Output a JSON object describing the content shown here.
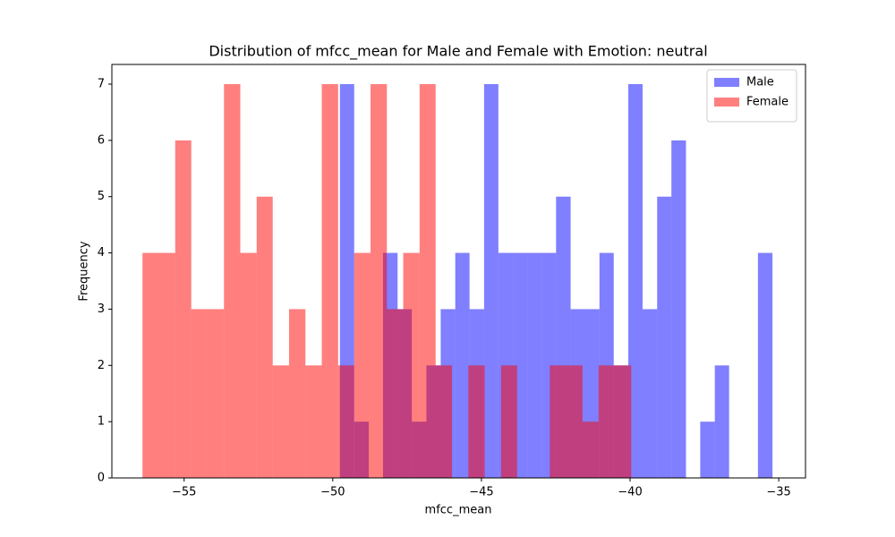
{
  "chart_data": {
    "type": "histogram",
    "title": "Distribution of mfcc_mean for Male and Female with Emotion: neutral",
    "x_label": "mfcc_mean",
    "y_label": "Frequency",
    "xlim": [
      -57.43,
      -34.1
    ],
    "ylim": [
      0,
      7.35
    ],
    "xticks": [
      {
        "value": -55,
        "label": "−55"
      },
      {
        "value": -50,
        "label": "−50"
      },
      {
        "value": -45,
        "label": "−45"
      },
      {
        "value": -40,
        "label": "−40"
      },
      {
        "value": -35,
        "label": "−35"
      }
    ],
    "yticks": [
      0,
      1,
      2,
      3,
      4,
      5,
      6,
      7
    ],
    "legend": "upper right",
    "opacity": 0.5,
    "series": [
      {
        "name": "Male",
        "color": "#0000ff",
        "bins": [
          -49.76,
          -49.28,
          -48.79,
          -48.31,
          -47.82,
          -47.34,
          -46.85,
          -46.37,
          -45.88,
          -45.4,
          -44.91,
          -44.43,
          -43.94,
          -43.46,
          -42.97,
          -42.49,
          -42.0,
          -41.52,
          -41.03,
          -40.55,
          -40.06,
          -39.58,
          -39.09,
          -38.61,
          -38.12,
          -37.64,
          -37.15,
          -36.67,
          -36.18,
          -35.7,
          -35.21
        ],
        "values": [
          7,
          1,
          0,
          4,
          3,
          1,
          2,
          3,
          4,
          3,
          7,
          4,
          4,
          4,
          4,
          5,
          3,
          3,
          4,
          2,
          7,
          3,
          5,
          6,
          0,
          1,
          2,
          0,
          0,
          4
        ]
      },
      {
        "name": "Female",
        "color": "#ff0000",
        "bins": [
          -56.4,
          -55.85,
          -55.3,
          -54.76,
          -54.21,
          -53.66,
          -53.11,
          -52.56,
          -52.02,
          -51.47,
          -50.92,
          -50.37,
          -49.82,
          -49.28,
          -48.73,
          -48.18,
          -47.63,
          -47.08,
          -46.54,
          -45.99,
          -45.44,
          -44.89,
          -44.34,
          -43.8,
          -43.25,
          -42.7,
          -42.15,
          -41.6,
          -41.06,
          -40.51,
          -39.96
        ],
        "values": [
          4,
          4,
          6,
          3,
          3,
          7,
          4,
          5,
          2,
          3,
          2,
          7,
          2,
          4,
          7,
          3,
          4,
          7,
          2,
          0,
          2,
          0,
          2,
          0,
          0,
          2,
          2,
          1,
          2,
          2
        ]
      }
    ]
  }
}
